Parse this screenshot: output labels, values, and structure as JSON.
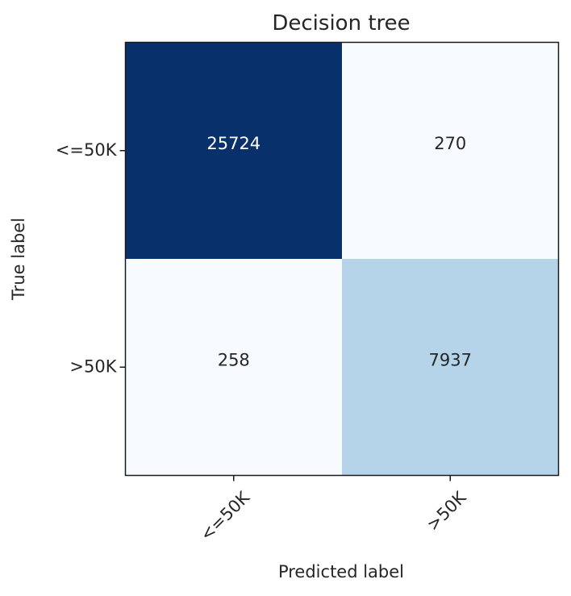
{
  "chart_data": {
    "type": "heatmap",
    "title": "Decision tree",
    "xlabel": "Predicted label",
    "ylabel": "True label",
    "x_categories": [
      "<=50K",
      ">50K"
    ],
    "y_categories": [
      "<=50K",
      ">50K"
    ],
    "values": [
      [
        25724,
        270
      ],
      [
        258,
        7937
      ]
    ],
    "colormap": "Blues",
    "colors": {
      "max": "#08306b",
      "mid": "#b3d3e8",
      "min": "#f7fbff",
      "text_dark": "#262626",
      "text_light": "#ffffff",
      "frame": "#1a1a1a"
    },
    "grid": false,
    "legend": "none"
  }
}
